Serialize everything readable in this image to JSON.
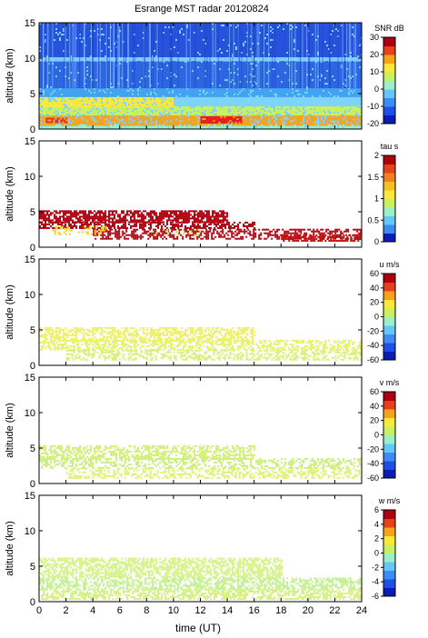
{
  "title": "Esrange MST radar 20120824",
  "xlabel": "time (UT)",
  "chart_data": [
    {
      "type": "heatmap",
      "ylabel": "altitude (km)",
      "colorbar": {
        "label": "SNR dB",
        "ticks": [
          30,
          20,
          10,
          0,
          -10,
          -20
        ],
        "range": [
          -20,
          30
        ]
      },
      "x_ticks": [
        0,
        2,
        4,
        6,
        8,
        10,
        12,
        14,
        16,
        18,
        20,
        22,
        24
      ],
      "y_ticks": [
        0,
        5,
        10,
        15
      ],
      "xlim": [
        0,
        24
      ],
      "ylim": [
        0,
        15
      ],
      "background": "#7fd4ff",
      "layers": [
        {
          "y": [
            0,
            0.6
          ],
          "x": [
            0,
            24
          ],
          "color": "#9af0c8",
          "density": 0.9
        },
        {
          "y": [
            0.6,
            2.0
          ],
          "x": [
            0,
            24
          ],
          "color": "#f7a319",
          "density": 0.75
        },
        {
          "y": [
            1.0,
            1.8
          ],
          "x": [
            12,
            15
          ],
          "color": "#e8201a",
          "density": 0.9
        },
        {
          "y": [
            1.0,
            1.6
          ],
          "x": [
            0.5,
            2
          ],
          "color": "#e8301a",
          "density": 0.7
        },
        {
          "y": [
            2.0,
            3.2
          ],
          "x": [
            0,
            24
          ],
          "color": "#c8f060",
          "density": 0.8
        },
        {
          "y": [
            3.2,
            4.6
          ],
          "x": [
            0,
            10
          ],
          "color": "#fbe93a",
          "density": 0.8
        },
        {
          "y": [
            4.6,
            5.8
          ],
          "x": [
            0,
            24
          ],
          "color": "#3fa0f0",
          "density": 0.9
        },
        {
          "y": [
            5.8,
            9.6
          ],
          "x": [
            0,
            24
          ],
          "color": "#2a62e0",
          "density": 0.95
        },
        {
          "y": [
            9.6,
            10.3
          ],
          "x": [
            0,
            24
          ],
          "color": "#7fc8ff",
          "density": 0.8
        },
        {
          "y": [
            10.3,
            15
          ],
          "x": [
            0,
            24
          ],
          "color": "#2752dc",
          "density": 0.95
        }
      ]
    },
    {
      "type": "heatmap",
      "ylabel": "altitude (km)",
      "colorbar": {
        "label": "tau s",
        "ticks": [
          2,
          1.5,
          1,
          0.5,
          0
        ],
        "range": [
          0,
          2
        ]
      },
      "x_ticks": [
        0,
        2,
        4,
        6,
        8,
        10,
        12,
        14,
        16,
        18,
        20,
        22,
        24
      ],
      "y_ticks": [
        0,
        5,
        10,
        15
      ],
      "xlim": [
        0,
        24
      ],
      "ylim": [
        0,
        15
      ],
      "background": "#ffffff",
      "layers": [
        {
          "y": [
            3.6,
            5.2
          ],
          "x": [
            0,
            14
          ],
          "color": "#b0000e",
          "density": 0.75
        },
        {
          "y": [
            2.6,
            3.6
          ],
          "x": [
            0,
            16
          ],
          "color": "#b0000e",
          "density": 0.6
        },
        {
          "y": [
            1.2,
            2.6
          ],
          "x": [
            4,
            24
          ],
          "color": "#b0000e",
          "density": 0.55
        },
        {
          "y": [
            1.0,
            1.8
          ],
          "x": [
            18,
            24
          ],
          "color": "#c01010",
          "density": 0.7
        },
        {
          "y": [
            1.8,
            3.0
          ],
          "x": [
            1,
            5
          ],
          "color": "#f5d020",
          "density": 0.35
        },
        {
          "y": [
            1.6,
            2.6
          ],
          "x": [
            8,
            12
          ],
          "color": "#c8f060",
          "density": 0.15
        }
      ]
    },
    {
      "type": "heatmap",
      "ylabel": "altitude (km)",
      "colorbar": {
        "label": "u m/s",
        "ticks": [
          60,
          40,
          20,
          0,
          -20,
          -40,
          -60
        ],
        "range": [
          -60,
          60
        ]
      },
      "x_ticks": [
        0,
        2,
        4,
        6,
        8,
        10,
        12,
        14,
        16,
        18,
        20,
        22,
        24
      ],
      "y_ticks": [
        0,
        5,
        10,
        15
      ],
      "xlim": [
        0,
        24
      ],
      "ylim": [
        0,
        15
      ],
      "background": "#ffffff",
      "layers": [
        {
          "y": [
            3.6,
            5.4
          ],
          "x": [
            0,
            16
          ],
          "color": "#eef268",
          "density": 0.6
        },
        {
          "y": [
            2.2,
            3.6
          ],
          "x": [
            0,
            24
          ],
          "color": "#e6f46a",
          "density": 0.5
        },
        {
          "y": [
            0.8,
            2.2
          ],
          "x": [
            2,
            24
          ],
          "color": "#d8f070",
          "density": 0.45
        }
      ]
    },
    {
      "type": "heatmap",
      "ylabel": "altitude (km)",
      "colorbar": {
        "label": "v m/s",
        "ticks": [
          60,
          40,
          20,
          0,
          -20,
          -40,
          -60
        ],
        "range": [
          -60,
          60
        ]
      },
      "x_ticks": [
        0,
        2,
        4,
        6,
        8,
        10,
        12,
        14,
        16,
        18,
        20,
        22,
        24
      ],
      "y_ticks": [
        0,
        5,
        10,
        15
      ],
      "xlim": [
        0,
        24
      ],
      "ylim": [
        0,
        15
      ],
      "background": "#ffffff",
      "layers": [
        {
          "y": [
            3.6,
            5.4
          ],
          "x": [
            0,
            16
          ],
          "color": "#d4f07a",
          "density": 0.55
        },
        {
          "y": [
            2.2,
            3.6
          ],
          "x": [
            0,
            24
          ],
          "color": "#ccf07e",
          "density": 0.45
        },
        {
          "y": [
            0.8,
            2.2
          ],
          "x": [
            2,
            24
          ],
          "color": "#e2f070",
          "density": 0.45
        }
      ]
    },
    {
      "type": "heatmap",
      "ylabel": "altitude (km)",
      "colorbar": {
        "label": "w m/s",
        "ticks": [
          6,
          4,
          2,
          0,
          -2,
          -4,
          -6
        ],
        "range": [
          -6,
          6
        ]
      },
      "x_ticks": [
        0,
        2,
        4,
        6,
        8,
        10,
        12,
        14,
        16,
        18,
        20,
        22,
        24
      ],
      "y_ticks": [
        0,
        5,
        10,
        15
      ],
      "xlim": [
        0,
        24
      ],
      "ylim": [
        0,
        15
      ],
      "background": "#ffffff",
      "layers": [
        {
          "y": [
            3.4,
            6.2
          ],
          "x": [
            0,
            18
          ],
          "color": "#d6f48a",
          "density": 0.65
        },
        {
          "y": [
            1.8,
            3.4
          ],
          "x": [
            0,
            24
          ],
          "color": "#c8f29a",
          "density": 0.6
        },
        {
          "y": [
            0.4,
            1.8
          ],
          "x": [
            0,
            24
          ],
          "color": "#d8f288",
          "density": 0.6
        }
      ]
    }
  ],
  "colormaps": {
    "jet": [
      "#0a1cb8",
      "#1f4ee8",
      "#3b8cf5",
      "#64c6fb",
      "#9af0c8",
      "#c8f060",
      "#fbe93a",
      "#f7a319",
      "#e8401a",
      "#b0000e"
    ],
    "tau": [
      "#0a1cb8",
      "#3b8cf5",
      "#64c6fb",
      "#9af0c8",
      "#c8f060",
      "#fbe93a",
      "#f7c020",
      "#f08020",
      "#e8401a",
      "#b0000e"
    ]
  }
}
